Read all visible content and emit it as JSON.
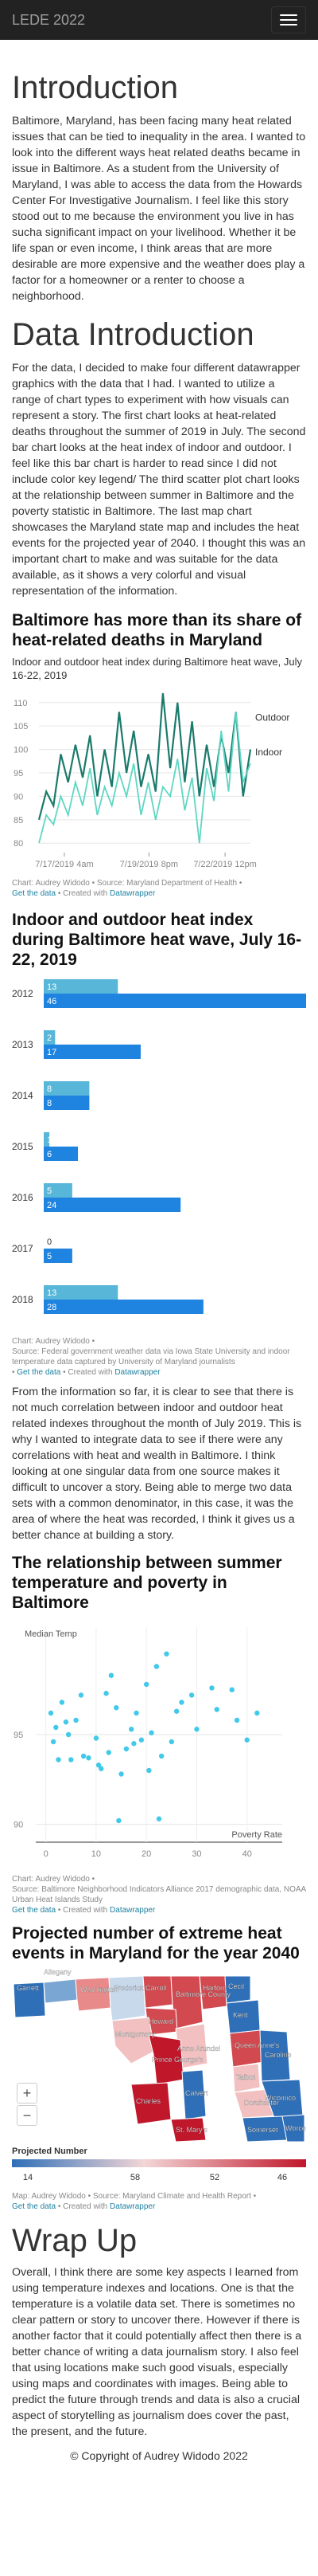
{
  "nav": {
    "brand": "LEDE 2022"
  },
  "intro": {
    "heading": "Introduction",
    "paragraph": "Baltimore, Maryland, has been facing many heat related issues that can be tied to inequality in the area. I wanted to look into the different ways heat related deaths became in issue in Baltimore. As a student from the University of Maryland, I was able to access the data from the Howards Center For Investigative Journalism. I feel like this story stood out to me because the environment you live in has sucha significant impact on your livelihood. Whether it be life span or even income, I think areas that are more desirable are more expensive and the weather does play a factor for a homeowner or a renter to choose a neighborhood."
  },
  "data_intro": {
    "heading": "Data Introduction",
    "paragraph": "For the data, I decided to make four different datawrapper graphics with the data that I had. I wanted to utilize a range of chart types to experiment with how visuals can represent a story. The first chart looks at heat-related deaths throughout the summer of 2019 in July. The second bar chart looks at the heat index of indoor and outdoor. I feel like this bar chart is harder to read since I did not include color key legend/ The third scatter plot chart looks at the relationship between summer in Baltimore and the poverty statistic in Baltimore. The last map chart showcases the Maryland state map and includes the heat events for the projected year of 2040. I thought this was an important chart to make and was suitable for the data available, as it shows a very colorful and visual representation of the information."
  },
  "chart1": {
    "title": "Baltimore has more than its share of heat-related deaths in Maryland",
    "subtitle": "Indoor and outdoor heat index during Baltimore heat wave, July 16-22, 2019",
    "notes_line1": "Chart: Audrey Widodo • Source: Maryland Department of Health •",
    "get_data": "Get the data",
    "created_with": " • Created with ",
    "dw": "Datawrapper"
  },
  "chart2": {
    "title": "Indoor and outdoor heat index during Baltimore heat wave, July 16-22, 2019",
    "notes_line1": "Chart: Audrey Widodo •",
    "notes_line2": "Source: Federal government weather data via Iowa State University and indoor temperature data captured by University of Maryland journalists",
    "notes_line3_prefix": " • ",
    "get_data": "Get the data",
    "created_with": " • Created with ",
    "dw": "Datawrapper"
  },
  "bridge": {
    "paragraph": "From the information so far, it is clear to see that there is not much correlation between indoor and outdoor heat related indexes throughout the month of July 2019. This is why I wanted to integrate data to see if there were any correlations with heat and wealth in Baltimore. I think looking at one singular data from one source makes it difficult to uncover a story. Being able to merge two data sets with a common denominator, in this case, it was the area of where the heat was recorded, I think it gives us a better chance at building a story."
  },
  "chart3": {
    "title": "The relationship between summer temperature and poverty in Baltimore",
    "notes_line1": "Chart: Audrey Widodo •",
    "notes_line2": "Source: Baltimore Neighborhood Indicators Alliance 2017 demographic data, NOAA Urban Heat Islands Study",
    "get_data": "Get the data",
    "created_with": " • Created with ",
    "dw": "Datawrapper"
  },
  "chart4": {
    "title": "Projected number of extreme heat events in Maryland for the year 2040",
    "legend_title": "Projected Number",
    "zoom_in": "+",
    "zoom_out": "−",
    "notes_line1": "Map: Audrey Widodo • Source: Maryland Climate and Health Report •",
    "get_data": "Get the data",
    "created_with": " • Created with ",
    "dw": "Datawrapper"
  },
  "wrap": {
    "heading": "Wrap Up",
    "paragraph": "Overall, I think there are some key aspects I learned from using temperature indexes and locations. One is that the temperature is a volatile data set. There is sometimes no clear pattern or story to uncover there. However if there is another factor that it could potentially affect then there is a better chance of writing a data journalism story. I also feel that using locations make such good visuals, especially using maps and coordinates with images. Being able to predict the future through trends and data is also a crucial aspect of storytelling as journalism does cover the past, the present, and the future.",
    "copyright": "© Copyright of Audrey Widodo 2022"
  },
  "colors": {
    "outdoor": "#1a7a6b",
    "indoor": "#5fd6c3",
    "bar_top": "#58b6d8",
    "bar_bottom": "#1e84df",
    "scatter": "#2ec3e8",
    "map_low": "#2e6fb7",
    "map_high": "#c0172b",
    "link": "#1d81a2"
  },
  "chart_data": [
    {
      "type": "line",
      "x_tick_labels": [
        "7/17/2019 4am",
        "7/19/2019 8pm",
        "7/22/2019 12pm"
      ],
      "ylim": [
        78,
        112
      ],
      "y_ticks": [
        80,
        85,
        90,
        95,
        100,
        105,
        110
      ],
      "series": [
        {
          "name": "Outdoor",
          "values": [
            85,
            91,
            88,
            99,
            93,
            101,
            94,
            103,
            90,
            100,
            92,
            108,
            95,
            104,
            92,
            99,
            91,
            112,
            96,
            110,
            93,
            106,
            90,
            101,
            92,
            103,
            95,
            108,
            90,
            100
          ]
        },
        {
          "name": "Indoor",
          "values": [
            80,
            86,
            84,
            90,
            86,
            93,
            88,
            96,
            86,
            92,
            88,
            95,
            90,
            97,
            86,
            93,
            85,
            92,
            90,
            98,
            87,
            94,
            80,
            96,
            89,
            104,
            91,
            108,
            93,
            97
          ]
        }
      ]
    },
    {
      "type": "bar",
      "categories": [
        "2012",
        "2013",
        "2014",
        "2015",
        "2016",
        "2017",
        "2018"
      ],
      "xlim": [
        0,
        46
      ],
      "series": [
        {
          "values": [
            13,
            2,
            8,
            1,
            5,
            0,
            13
          ]
        },
        {
          "values": [
            46,
            17,
            8,
            6,
            24,
            5,
            28
          ]
        }
      ]
    },
    {
      "type": "scatter",
      "ylabel": "Median Temp",
      "xlabel": "Poverty Rate",
      "xlim": [
        -2,
        47
      ],
      "ylim": [
        89,
        101
      ],
      "x_ticks": [
        0,
        10,
        20,
        30,
        40
      ],
      "y_ticks": [
        90,
        95
      ],
      "points": [
        [
          1,
          96.2
        ],
        [
          1.5,
          94.6
        ],
        [
          2,
          95.4
        ],
        [
          2.5,
          93.6
        ],
        [
          3.2,
          96.8
        ],
        [
          4,
          95.7
        ],
        [
          4.5,
          95
        ],
        [
          5,
          93.6
        ],
        [
          6,
          95.8
        ],
        [
          7,
          97.2
        ],
        [
          7.5,
          93.8
        ],
        [
          8.5,
          93.7
        ],
        [
          10,
          94.8
        ],
        [
          10.5,
          93.3
        ],
        [
          11,
          93.1
        ],
        [
          12,
          97.3
        ],
        [
          13,
          98.3
        ],
        [
          14,
          96.5
        ],
        [
          15,
          92.8
        ],
        [
          16,
          94.2
        ],
        [
          17,
          95.3
        ],
        [
          17.5,
          94.5
        ],
        [
          18,
          96.2
        ],
        [
          19,
          94.7
        ],
        [
          20,
          97.8
        ],
        [
          21,
          95.1
        ],
        [
          22,
          98.8
        ],
        [
          23,
          93.8
        ],
        [
          24,
          99.5
        ],
        [
          25,
          94.6
        ],
        [
          26,
          96.3
        ],
        [
          27,
          96.8
        ],
        [
          29,
          97.2
        ],
        [
          30,
          95.3
        ],
        [
          33,
          97.6
        ],
        [
          34,
          96.4
        ],
        [
          37,
          97.5
        ],
        [
          38,
          95.8
        ],
        [
          40,
          94.7
        ],
        [
          42,
          96.2
        ],
        [
          12.5,
          94
        ],
        [
          20.5,
          93
        ],
        [
          14.5,
          90.2
        ],
        [
          22.5,
          90.3
        ]
      ]
    },
    {
      "type": "map",
      "legend_stops": [
        14,
        58,
        52,
        46
      ],
      "county_labels": [
        "Garrett",
        "Allegany",
        "Washington",
        "Frederick",
        "Carroll",
        "Baltimore County",
        "Harford",
        "Cecil",
        "Howard",
        "Montgomery",
        "Anne Arundel",
        "Kent",
        "Queen Anne's",
        "Prince George's",
        "Talbot",
        "Caroline",
        "Charles",
        "Calvert",
        "Dorchester",
        "St. Mary's",
        "Wicomico",
        "Somerset",
        "Worcester"
      ]
    }
  ]
}
